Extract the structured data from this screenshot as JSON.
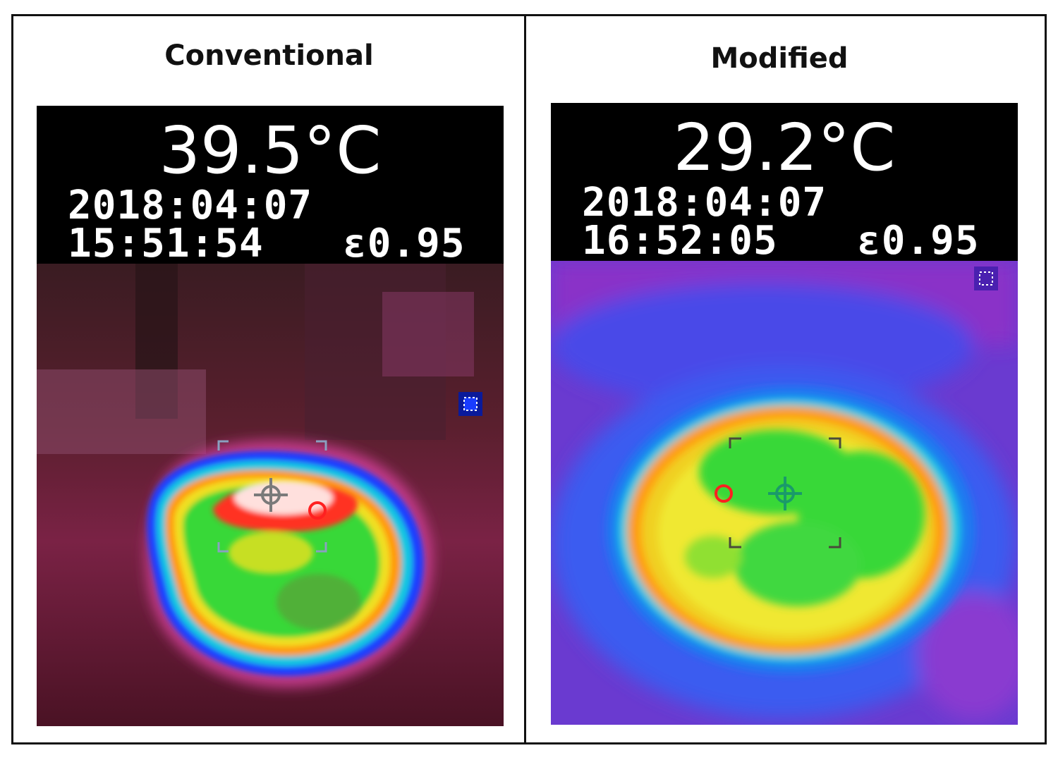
{
  "panels": [
    {
      "title": "Conventional",
      "temperature": "39.5°C",
      "date": "2018:04:07",
      "time": "15:51:54",
      "emissivity": "ε0.95",
      "palette": "thermal-red-background"
    },
    {
      "title": "Modified",
      "temperature": "29.2°C",
      "date": "2018:04:07",
      "time": "16:52:05",
      "emissivity": "ε0.95",
      "palette": "thermal-purple-background"
    }
  ]
}
